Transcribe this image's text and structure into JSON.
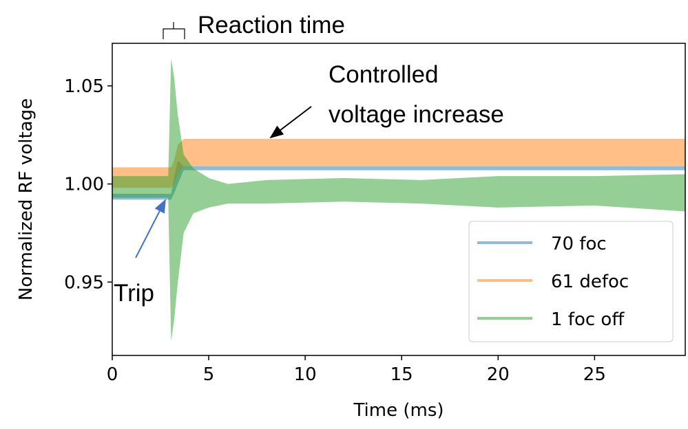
{
  "chart_data": {
    "type": "band",
    "xlabel": "Time (ms)",
    "ylabel": "Normalized RF voltage",
    "x": [
      0,
      2.9,
      3.05,
      3.2,
      3.4,
      3.7,
      4.2,
      5,
      6,
      8,
      12,
      16,
      20,
      25,
      29.7
    ],
    "series": [
      {
        "name": "70 foc",
        "color": "#1f77b4",
        "upper": [
          0.995,
          0.995,
          0.995,
          1.003,
          1.012,
          1.009,
          1.009,
          1.009,
          1.009,
          1.009,
          1.009,
          1.009,
          1.009,
          1.009,
          1.009
        ],
        "lower": [
          0.992,
          0.992,
          0.992,
          0.995,
          1.0,
          1.007,
          1.007,
          1.007,
          1.007,
          1.007,
          1.007,
          1.007,
          1.007,
          1.007,
          1.007
        ]
      },
      {
        "name": "61 defoc",
        "color": "#ff7f0e",
        "upper": [
          1.0085,
          1.0085,
          1.0085,
          1.012,
          1.02,
          1.023,
          1.023,
          1.023,
          1.023,
          1.023,
          1.023,
          1.023,
          1.023,
          1.023,
          1.023
        ],
        "lower": [
          0.998,
          0.998,
          0.998,
          1.0,
          1.005,
          1.009,
          1.009,
          1.009,
          1.009,
          1.009,
          1.009,
          1.009,
          1.009,
          1.009,
          1.009
        ]
      },
      {
        "name": "1 foc off",
        "color": "#2ca02c",
        "upper": [
          1.004,
          1.004,
          1.064,
          1.055,
          1.035,
          1.015,
          1.008,
          1.003,
          1.0,
          1.002,
          1.003,
          1.002,
          1.004,
          1.004,
          1.005
        ],
        "lower": [
          0.993,
          0.993,
          0.92,
          0.93,
          0.95,
          0.975,
          0.985,
          0.988,
          0.99,
          0.99,
          0.991,
          0.99,
          0.988,
          0.989,
          0.986
        ]
      }
    ],
    "alpha": 0.5,
    "xlim": [
      0,
      29.7
    ],
    "ylim": [
      0.9126,
      1.0717
    ],
    "xticks": [
      0,
      5,
      10,
      15,
      20,
      25
    ],
    "yticks": [
      0.95,
      {
        "value": 1.0,
        "label": "1.00"
      },
      1.05
    ],
    "legend": "lower right",
    "annotations": {
      "reaction": "Reaction time",
      "controlled": [
        "Controlled",
        "voltage increase"
      ],
      "trip": "Trip"
    }
  }
}
